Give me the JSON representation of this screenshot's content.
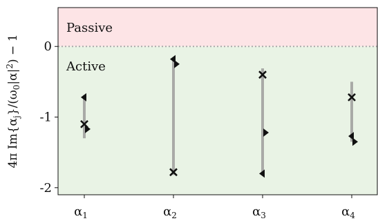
{
  "chart_data": {
    "type": "scatter",
    "categories": [
      "α1",
      "α2",
      "α3",
      "α4"
    ],
    "category_labels": [
      {
        "base": "α",
        "sub": "1"
      },
      {
        "base": "α",
        "sub": "2"
      },
      {
        "base": "α",
        "sub": "3"
      },
      {
        "base": "α",
        "sub": "4"
      }
    ],
    "ylabel": "4π Im{α_j}/(ω₀|α|²) − 1",
    "ylabel_parts": {
      "main": "4π Im{α",
      "sub": "j",
      "mid": "}/(ω",
      "sub2": "0",
      "rest": "|α|",
      "sup": "2",
      "end": ") − 1"
    },
    "ylim": [
      -2.1,
      0.55
    ],
    "yticks": [
      0,
      -1,
      -2
    ],
    "ytick_labels": [
      "0",
      "-1",
      "-2"
    ],
    "regions": {
      "passive_label": "Passive",
      "active_label": "Active",
      "passive_color": "#fde4e6",
      "active_color": "#e9f3e5",
      "boundary_y": 0
    },
    "ranges": [
      {
        "category": "α1",
        "min": -1.3,
        "max": -0.69
      },
      {
        "category": "α2",
        "min": -1.82,
        "max": -0.16
      },
      {
        "category": "α3",
        "min": -1.82,
        "max": -0.31
      },
      {
        "category": "α4",
        "min": -1.35,
        "max": -0.5
      }
    ],
    "series": [
      {
        "marker": "cross",
        "values": [
          -1.1,
          -1.78,
          -0.4,
          -0.72
        ]
      },
      {
        "marker": "triangle-left",
        "values": [
          -0.72,
          -0.18,
          -1.8,
          -1.27
        ]
      },
      {
        "marker": "triangle-right",
        "values": [
          -1.17,
          -0.25,
          -1.22,
          -1.35
        ]
      }
    ],
    "colors": {
      "range_bar": "#a9aaa7",
      "marker": "#111111",
      "zero_line": "#aaaaaa"
    }
  }
}
